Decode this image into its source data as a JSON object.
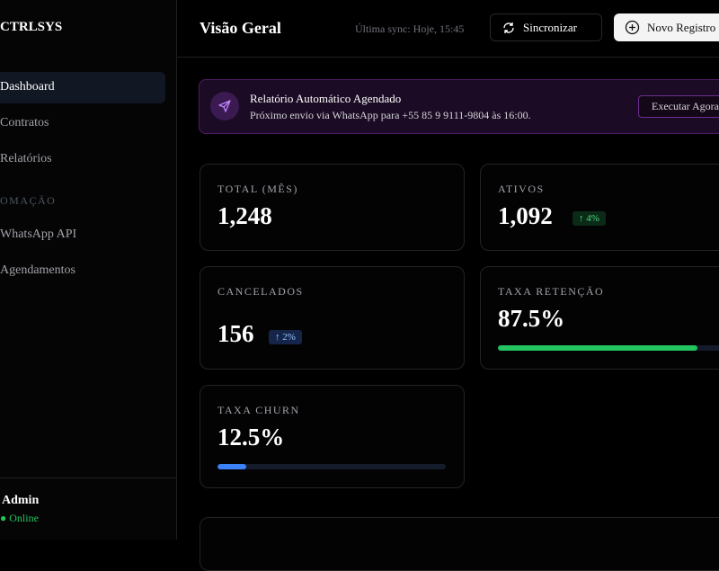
{
  "sidebar": {
    "brand": "CTRLSYS",
    "nav": [
      "Dashboard",
      "Contratos",
      "Relatórios"
    ],
    "section": "OMAÇÃO",
    "nav2": [
      "WhatsApp API",
      "Agendamentos"
    ],
    "user": {
      "name": "Admin",
      "status": "● Online"
    }
  },
  "header": {
    "title": "Visão Geral",
    "sync": "Última sync: Hoje, 15:45",
    "sync_button": "Sincronizar",
    "new_button": "Novo Registro"
  },
  "banner": {
    "title": "Relatório Automático Agendado",
    "subtitle": "Próximo envio via WhatsApp para +55 85 9 9111-9804 às 16:00.",
    "button": "Executar Agora"
  },
  "stats": [
    {
      "label": "TOTAL (MÊS)",
      "value": "1,248"
    },
    {
      "label": "ATIVOS",
      "value": "1,092",
      "badge": "↑ 4%"
    },
    {
      "label": "CANCELADOS",
      "value": "156",
      "badge": "↑ 2%"
    },
    {
      "label": "TAXA RETENÇÃO",
      "value": 87.5,
      "value_label": "87.5%"
    },
    {
      "label": "TAXA CHURN",
      "value": 12.5,
      "value_label": "12.5%"
    }
  ]
}
